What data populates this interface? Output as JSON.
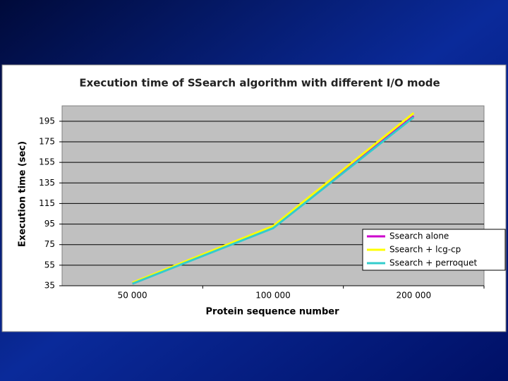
{
  "chart_data": {
    "type": "line",
    "title": "Execution time of SSearch algorithm with different I/O mode",
    "x_label": "Protein sequence number",
    "y_label": "Execution time (sec)",
    "categories": [
      "50 000",
      "100 000",
      "200 000"
    ],
    "series": [
      {
        "name": "Ssearch alone",
        "color": "#cc00cc",
        "values": [
          37,
          92,
          200
        ]
      },
      {
        "name": "Ssearch + lcg-cp",
        "color": "#ffff00",
        "values": [
          38,
          93,
          203
        ]
      },
      {
        "name": "Ssearch + perroquet",
        "color": "#33cccc",
        "values": [
          37,
          91,
          199
        ]
      }
    ],
    "ylim": [
      35,
      210
    ],
    "yticks": [
      35,
      55,
      75,
      95,
      115,
      135,
      155,
      175,
      195
    ],
    "grid": true,
    "legend": "lower right"
  }
}
